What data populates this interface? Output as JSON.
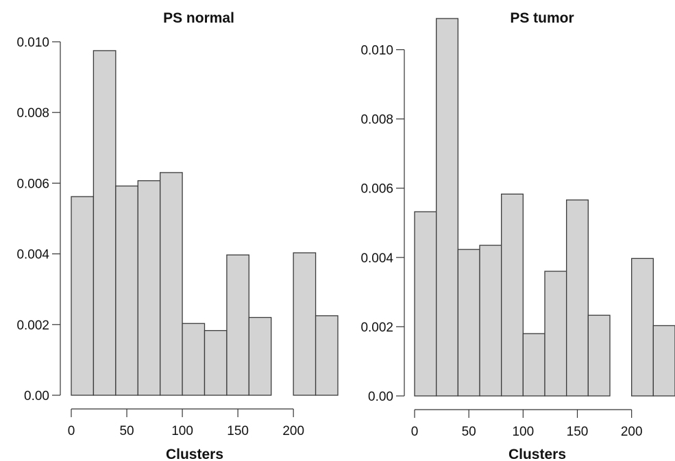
{
  "chart_data": [
    {
      "type": "bar",
      "title": "PS normal",
      "xlabel": "Clusters",
      "ylabel": "",
      "bin_width": 20,
      "bin_starts": [
        0,
        20,
        40,
        60,
        80,
        100,
        120,
        140,
        160,
        180,
        200,
        220
      ],
      "values": [
        0.00562,
        0.00975,
        0.00592,
        0.00607,
        0.0063,
        0.00203,
        0.00183,
        0.00397,
        0.0022,
        0.0,
        0.00403,
        0.00225
      ],
      "xlim": [
        0,
        240
      ],
      "ylim": [
        0,
        0.01
      ],
      "x_ticks": [
        0,
        50,
        100,
        150,
        200
      ],
      "x_tick_labels": [
        "0",
        "50",
        "100",
        "150",
        "200"
      ],
      "y_ticks": [
        0,
        0.002,
        0.004,
        0.006,
        0.008,
        0.01
      ],
      "y_tick_labels": [
        "0.00",
        "0.002",
        "0.004",
        "0.006",
        "0.008",
        "0.010"
      ]
    },
    {
      "type": "bar",
      "title": "PS tumor",
      "xlabel": "Clusters",
      "ylabel": "",
      "bin_width": 20,
      "bin_starts": [
        0,
        20,
        40,
        60,
        80,
        100,
        120,
        140,
        160,
        180,
        200,
        220
      ],
      "values": [
        0.00532,
        0.0109,
        0.00423,
        0.00435,
        0.00583,
        0.0018,
        0.0036,
        0.00566,
        0.00233,
        0.0,
        0.00397,
        0.00203
      ],
      "xlim": [
        0,
        240
      ],
      "ylim": [
        0,
        0.011
      ],
      "x_ticks": [
        0,
        50,
        100,
        150,
        200
      ],
      "x_tick_labels": [
        "0",
        "50",
        "100",
        "150",
        "200"
      ],
      "y_ticks": [
        0,
        0.002,
        0.004,
        0.006,
        0.008,
        0.01
      ],
      "y_tick_labels": [
        "0.00",
        "0.002",
        "0.004",
        "0.006",
        "0.008",
        "0.010"
      ]
    }
  ]
}
